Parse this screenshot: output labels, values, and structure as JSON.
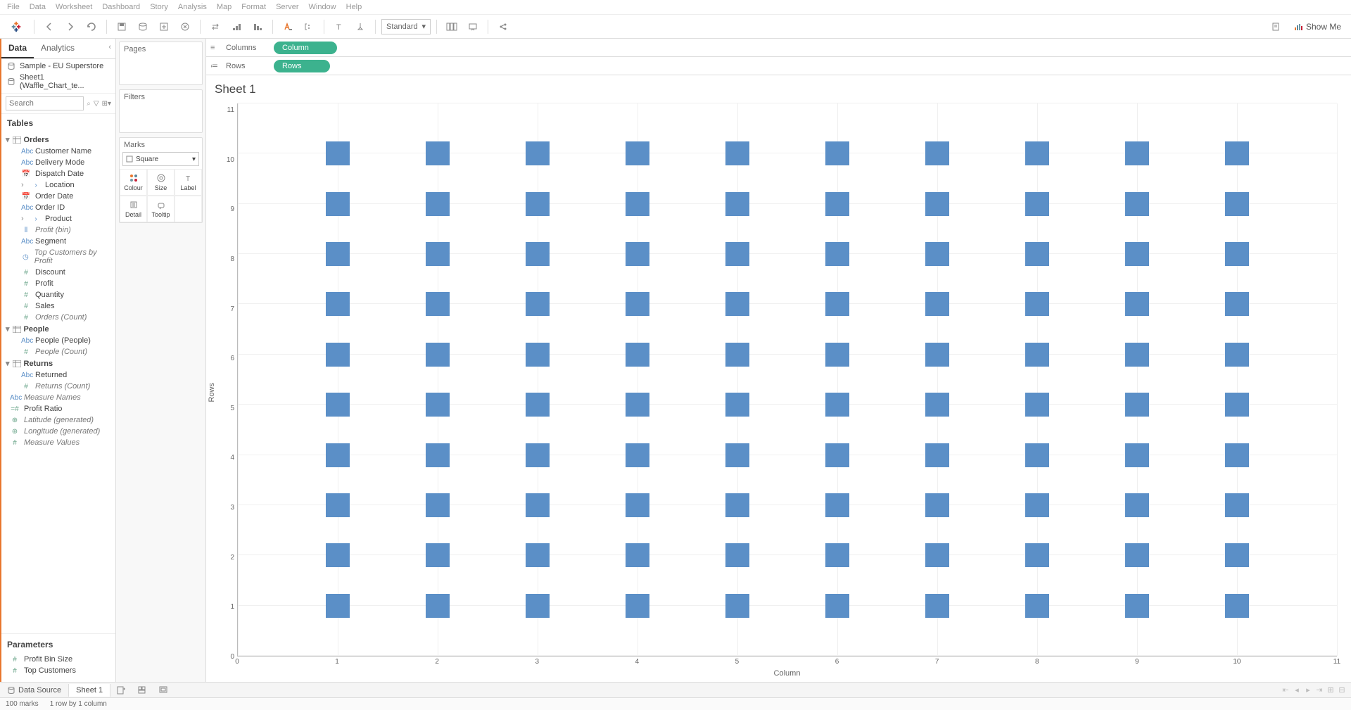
{
  "menu": [
    "File",
    "Data",
    "Worksheet",
    "Dashboard",
    "Story",
    "Analysis",
    "Map",
    "Format",
    "Server",
    "Window",
    "Help"
  ],
  "toolbar": {
    "fit_dropdown": "Standard",
    "showme": "Show Me"
  },
  "datapanel": {
    "tabs": {
      "data": "Data",
      "analytics": "Analytics"
    },
    "sources": [
      {
        "name": "Sample - EU Superstore"
      },
      {
        "name": "Sheet1 (Waffle_Chart_te..."
      }
    ],
    "search_placeholder": "Search",
    "tables_header": "Tables",
    "groups": [
      {
        "name": "Orders",
        "fields": [
          {
            "icon": "Abc",
            "cls": "ic-abc",
            "name": "Customer Name"
          },
          {
            "icon": "Abc",
            "cls": "ic-abc",
            "name": "Delivery Mode"
          },
          {
            "icon": "📅",
            "cls": "ic-date",
            "name": "Dispatch Date"
          },
          {
            "icon": "›",
            "cls": "ic-abc",
            "name": "Location",
            "expandable": true
          },
          {
            "icon": "📅",
            "cls": "ic-date",
            "name": "Order Date"
          },
          {
            "icon": "Abc",
            "cls": "ic-abc",
            "name": "Order ID"
          },
          {
            "icon": "›",
            "cls": "ic-abc",
            "name": "Product",
            "expandable": true
          },
          {
            "icon": "⫴",
            "cls": "ic-bar",
            "name": "Profit (bin)",
            "italic": true
          },
          {
            "icon": "Abc",
            "cls": "ic-abc",
            "name": "Segment"
          },
          {
            "icon": "◷",
            "cls": "ic-set",
            "name": "Top Customers by Profit",
            "italic": true
          },
          {
            "icon": "#",
            "cls": "ic-num",
            "name": "Discount"
          },
          {
            "icon": "#",
            "cls": "ic-num",
            "name": "Profit"
          },
          {
            "icon": "#",
            "cls": "ic-num",
            "name": "Quantity"
          },
          {
            "icon": "#",
            "cls": "ic-num",
            "name": "Sales"
          },
          {
            "icon": "#",
            "cls": "ic-num",
            "name": "Orders (Count)",
            "italic": true
          }
        ]
      },
      {
        "name": "People",
        "fields": [
          {
            "icon": "Abc",
            "cls": "ic-abc",
            "name": "People (People)"
          },
          {
            "icon": "#",
            "cls": "ic-num",
            "name": "People (Count)",
            "italic": true
          }
        ]
      },
      {
        "name": "Returns",
        "fields": [
          {
            "icon": "Abc",
            "cls": "ic-abc",
            "name": "Returned"
          },
          {
            "icon": "#",
            "cls": "ic-num",
            "name": "Returns (Count)",
            "italic": true
          }
        ]
      }
    ],
    "root_fields": [
      {
        "icon": "Abc",
        "cls": "ic-abc",
        "name": "Measure Names",
        "italic": true
      },
      {
        "icon": "=#",
        "cls": "ic-num",
        "name": "Profit Ratio"
      },
      {
        "icon": "⊕",
        "cls": "ic-geo",
        "name": "Latitude (generated)",
        "italic": true
      },
      {
        "icon": "⊕",
        "cls": "ic-geo",
        "name": "Longitude (generated)",
        "italic": true
      },
      {
        "icon": "#",
        "cls": "ic-num",
        "name": "Measure Values",
        "italic": true
      }
    ],
    "params_header": "Parameters",
    "params": [
      {
        "icon": "#",
        "cls": "ic-num",
        "name": "Profit Bin Size"
      },
      {
        "icon": "#",
        "cls": "ic-num",
        "name": "Top Customers"
      }
    ]
  },
  "cards": {
    "pages": "Pages",
    "filters": "Filters",
    "marks": "Marks",
    "mark_type": "Square",
    "cells": [
      "Colour",
      "Size",
      "Label",
      "Detail",
      "Tooltip"
    ]
  },
  "shelves": {
    "columns_label": "Columns",
    "columns_pill": "Column",
    "rows_label": "Rows",
    "rows_pill": "Rows"
  },
  "viz": {
    "title": "Sheet 1",
    "y_label": "Rows",
    "x_label": "Column",
    "x_ticks": [
      0,
      1,
      2,
      3,
      4,
      5,
      6,
      7,
      8,
      9,
      10,
      11
    ],
    "y_ticks": [
      11,
      10,
      9,
      8,
      7,
      6,
      5,
      4,
      3,
      2,
      1,
      0
    ],
    "grid_rows": [
      1,
      2,
      3,
      4,
      5,
      6,
      7,
      8,
      9,
      10
    ],
    "grid_cols": [
      1,
      2,
      3,
      4,
      5,
      6,
      7,
      8,
      9,
      10
    ],
    "square_color": "#5b8fc7",
    "grid_color": "#f0f0f0"
  },
  "bottom": {
    "datasource": "Data Source",
    "sheet_tab": "Sheet 1"
  },
  "status": {
    "marks": "100 marks",
    "layout": "1 row by 1 column"
  }
}
